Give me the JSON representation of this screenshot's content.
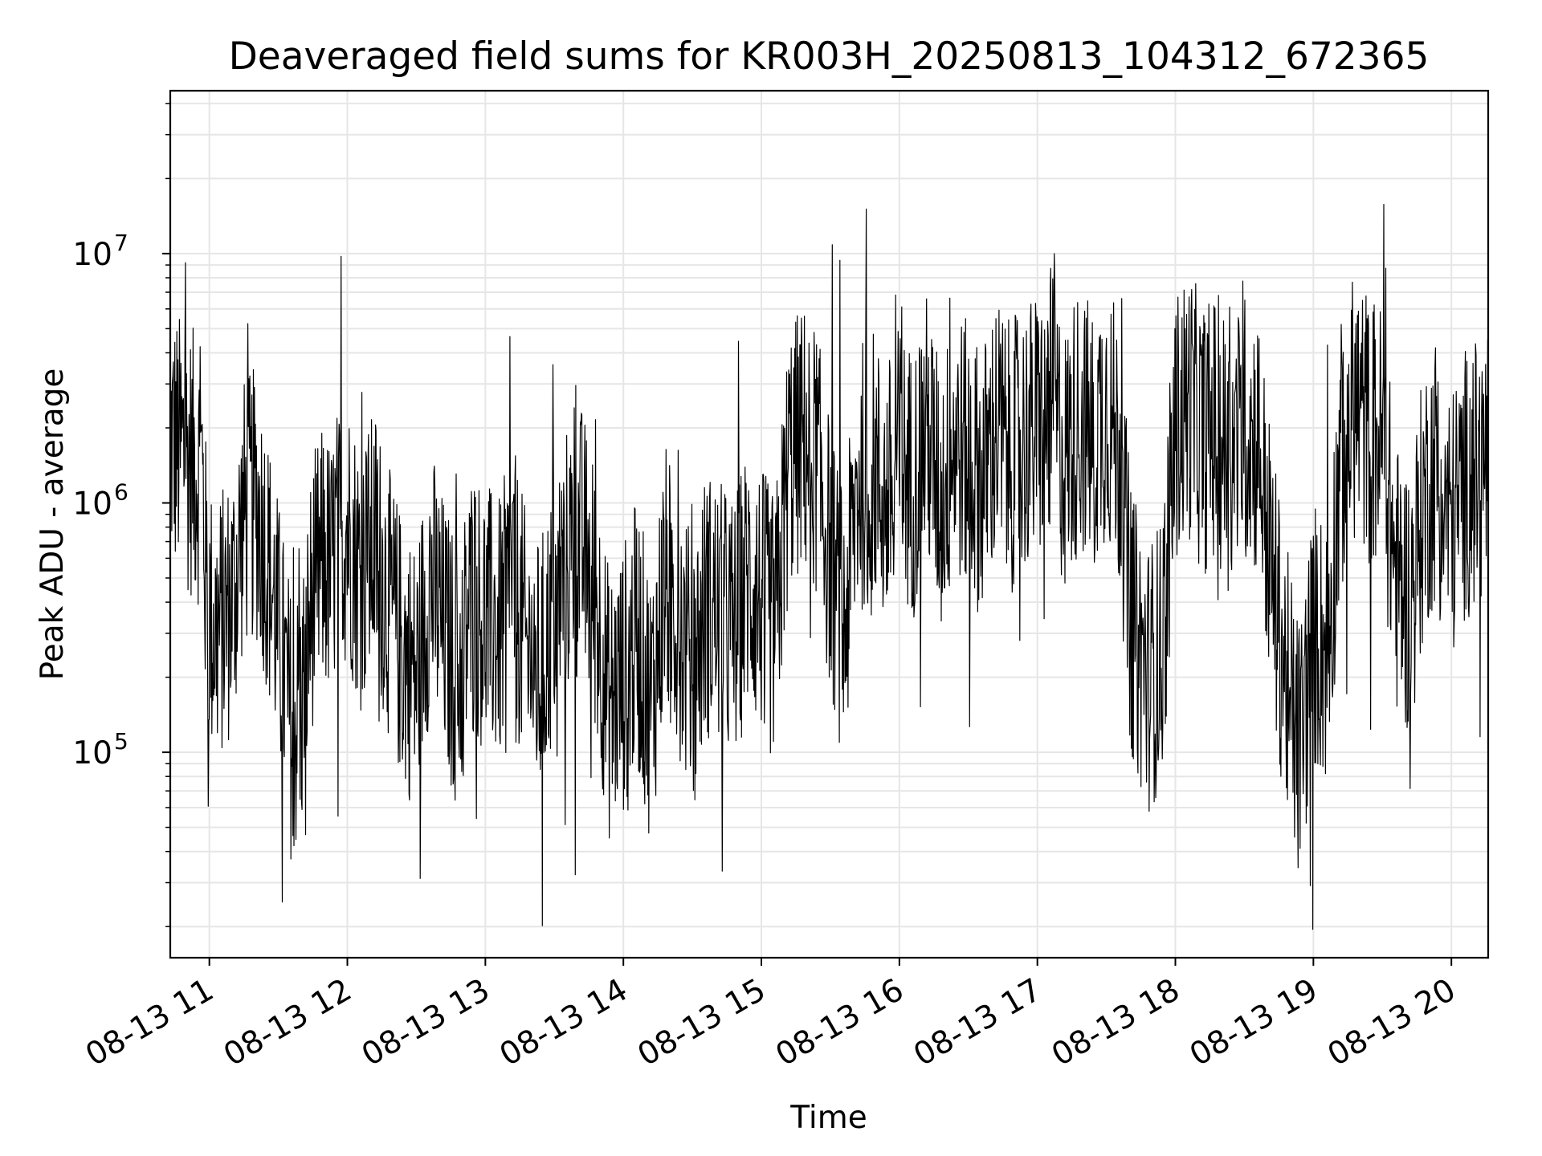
{
  "chart_data": {
    "type": "line",
    "title": "Deaveraged field sums for KR003H_20250813_104312_672365",
    "xlabel": "Time",
    "ylabel": "Peak ADU - average",
    "x_ticks": [
      "08-13 11",
      "08-13 12",
      "08-13 13",
      "08-13 14",
      "08-13 15",
      "08-13 16",
      "08-13 17",
      "08-13 18",
      "08-13 19",
      "08-13 20"
    ],
    "x_tick_hours": [
      11,
      12,
      13,
      14,
      15,
      16,
      17,
      18,
      19,
      20
    ],
    "y_ticks": [
      {
        "base": "10",
        "exp": "5",
        "value": 100000
      },
      {
        "base": "10",
        "exp": "6",
        "value": 1000000
      },
      {
        "base": "10",
        "exp": "7",
        "value": 10000000
      }
    ],
    "xlim": [
      "08-13 10:43",
      "08-13 20:16"
    ],
    "ylim": [
      15000,
      45000000
    ],
    "yscale": "log",
    "grid": true,
    "line_color": "#000000",
    "grid_color": "#e6e6e6",
    "series": [
      {
        "time": [
          "10:43",
          "10:51",
          "10:57",
          "10:58",
          "11:00",
          "11:03",
          "11:10",
          "11:15",
          "11:20",
          "11:24",
          "11:30",
          "11:36",
          "11:40",
          "11:45",
          "11:50",
          "11:53",
          "11:55",
          "12:00",
          "12:06",
          "12:12",
          "12:18",
          "12:24",
          "12:30",
          "12:36",
          "12:42",
          "12:48",
          "12:54",
          "13:00",
          "13:06",
          "13:12",
          "13:18",
          "13:24",
          "13:30",
          "13:36",
          "13:42",
          "13:48",
          "13:54",
          "14:00",
          "14:06",
          "14:12",
          "14:18",
          "14:24",
          "14:30",
          "14:36",
          "14:42",
          "14:48",
          "14:54",
          "15:00",
          "15:06",
          "15:12",
          "15:18",
          "15:24",
          "15:30",
          "15:36",
          "15:42",
          "15:48",
          "15:54",
          "16:00",
          "16:06",
          "16:12",
          "16:18",
          "16:24",
          "16:30",
          "16:36",
          "16:42",
          "16:48",
          "16:54",
          "17:00",
          "17:06",
          "17:12",
          "17:18",
          "17:24",
          "17:30",
          "17:36",
          "17:40",
          "17:42",
          "17:48",
          "17:54",
          "18:00",
          "18:06",
          "18:12",
          "18:18",
          "18:24",
          "18:30",
          "18:36",
          "18:42",
          "18:48",
          "18:54",
          "19:00",
          "19:06",
          "19:12",
          "19:18",
          "19:24",
          "19:30",
          "19:36",
          "19:42",
          "19:48",
          "19:54",
          "20:00",
          "20:06",
          "20:12",
          "20:16"
        ],
        "peak_adu_minus_average": [
          1800000,
          1500000,
          1300000,
          600000,
          350000,
          300000,
          400000,
          900000,
          1000000,
          700000,
          300000,
          120000,
          150000,
          450000,
          600000,
          500000,
          700000,
          800000,
          500000,
          700000,
          400000,
          250000,
          200000,
          500000,
          300000,
          200000,
          400000,
          350000,
          300000,
          500000,
          250000,
          200000,
          400000,
          600000,
          700000,
          400000,
          150000,
          200000,
          300000,
          150000,
          500000,
          350000,
          200000,
          400000,
          350000,
          300000,
          500000,
          400000,
          300000,
          1500000,
          1800000,
          1500000,
          600000,
          300000,
          1200000,
          1500000,
          1000000,
          1500000,
          1200000,
          2000000,
          1000000,
          1800000,
          1500000,
          1200000,
          2000000,
          1500000,
          1800000,
          2000000,
          2500000,
          1500000,
          2200000,
          1800000,
          2500000,
          1500000,
          400000,
          300000,
          200000,
          250000,
          2000000,
          2500000,
          1800000,
          2000000,
          1500000,
          2000000,
          1800000,
          500000,
          200000,
          100000,
          300000,
          250000,
          1500000,
          2500000,
          2000000,
          1800000,
          500000,
          400000,
          1000000,
          1500000,
          800000,
          1200000,
          1300000,
          1500000
        ]
      }
    ]
  }
}
